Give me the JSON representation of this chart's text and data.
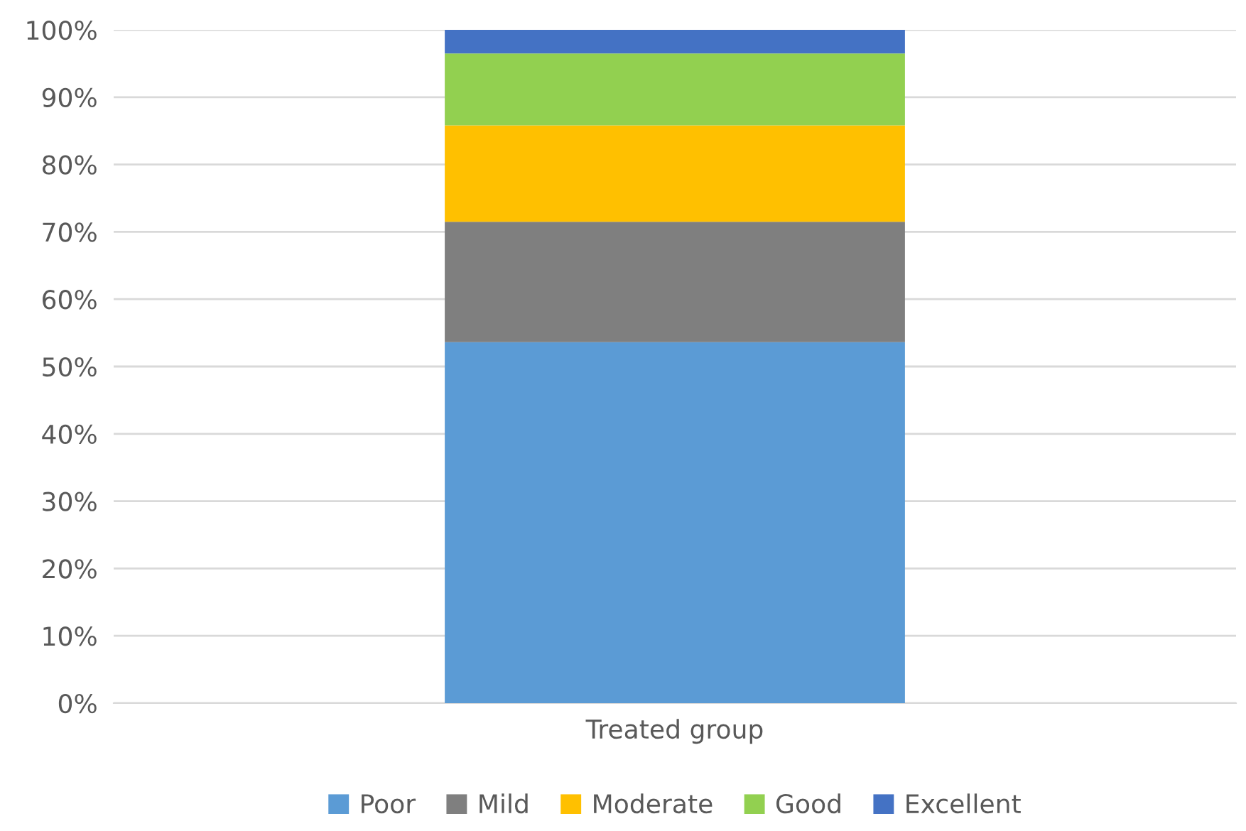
{
  "chart_data": {
    "type": "bar",
    "stacked": true,
    "categories": [
      "Treated group"
    ],
    "series": [
      {
        "name": "Poor",
        "color": "#5b9bd5",
        "values": [
          53.6
        ]
      },
      {
        "name": "Mild",
        "color": "#7f7f7f",
        "values": [
          17.9
        ]
      },
      {
        "name": "Moderate",
        "color": "#ffc000",
        "values": [
          14.3
        ]
      },
      {
        "name": "Good",
        "color": "#92d050",
        "values": [
          10.7
        ]
      },
      {
        "name": "Excellent",
        "color": "#4472c4",
        "values": [
          3.5
        ]
      }
    ],
    "ylim": [
      0,
      100
    ],
    "yticks": [
      {
        "value": 0,
        "label": "0%"
      },
      {
        "value": 10,
        "label": "10%"
      },
      {
        "value": 20,
        "label": "20%"
      },
      {
        "value": 30,
        "label": "30%"
      },
      {
        "value": 40,
        "label": "40%"
      },
      {
        "value": 50,
        "label": "50%"
      },
      {
        "value": 60,
        "label": "60%"
      },
      {
        "value": 70,
        "label": "70%"
      },
      {
        "value": 80,
        "label": "80%"
      },
      {
        "value": 90,
        "label": "90%"
      },
      {
        "value": 100,
        "label": "100%"
      }
    ],
    "grid": "y",
    "legend": "bottom"
  }
}
